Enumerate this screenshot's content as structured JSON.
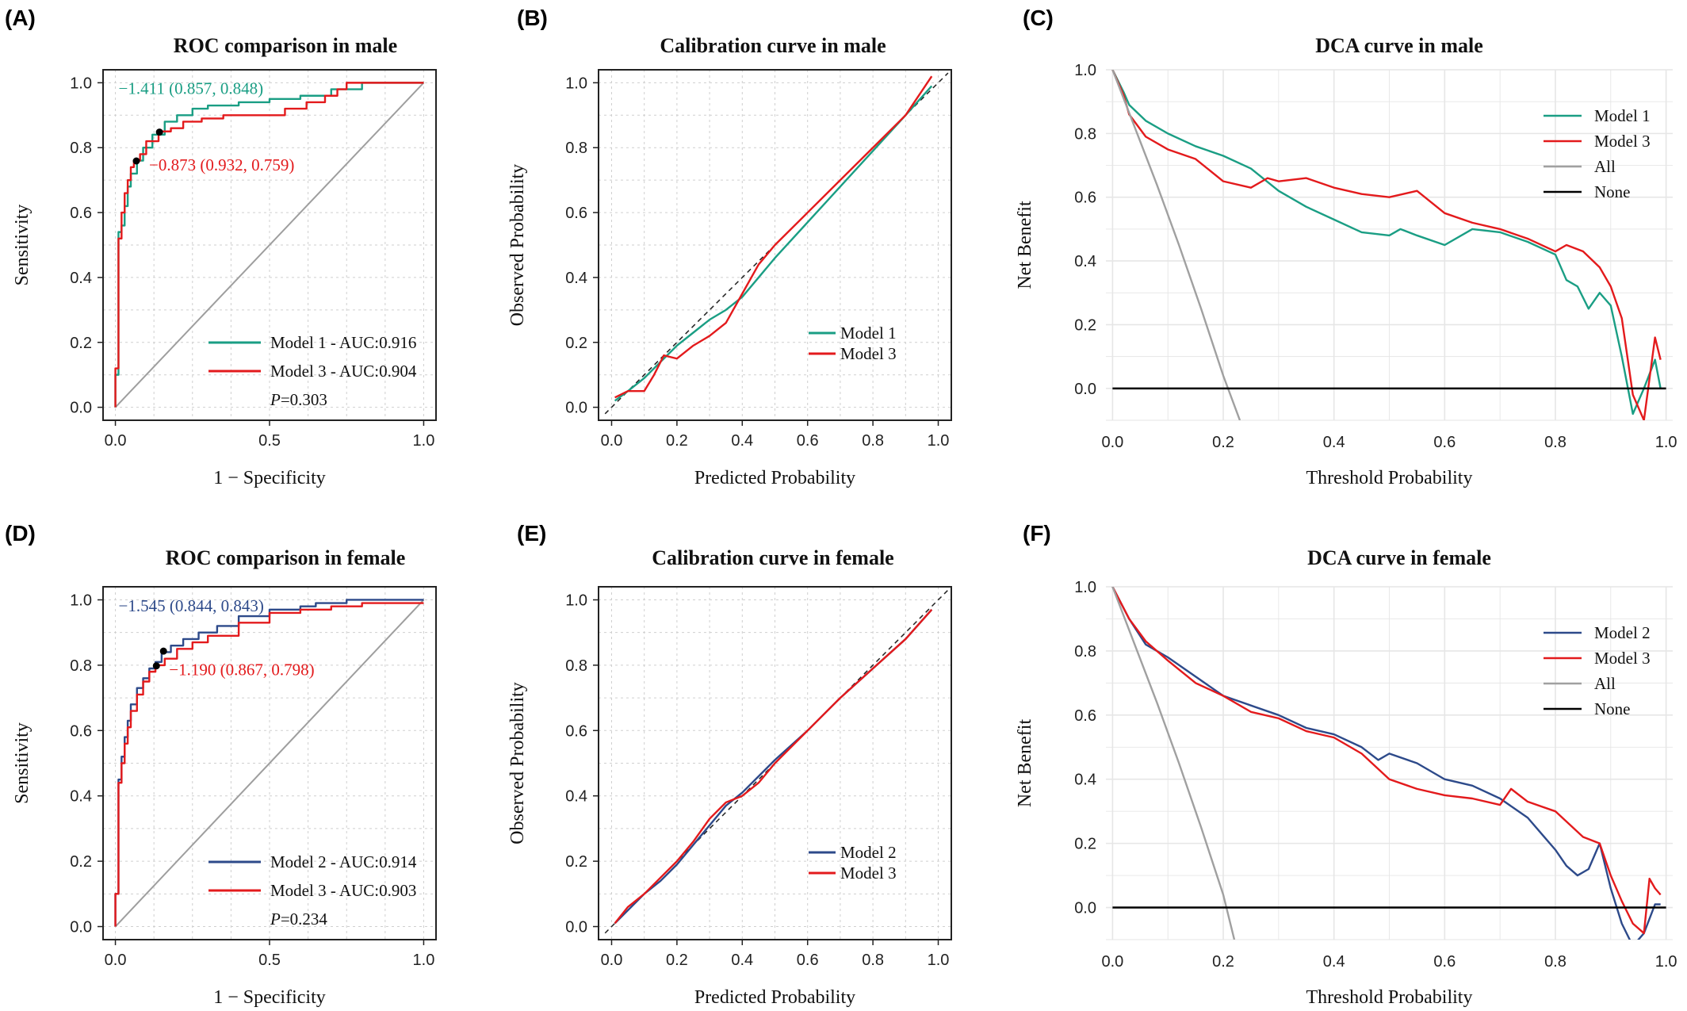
{
  "chart_data": [
    {
      "panel": "(A)",
      "type": "line",
      "kind": "roc",
      "title": "ROC comparison in male",
      "xlabel": "1 − Specificity",
      "ylabel": "Sensitivity",
      "xlim": [
        0,
        1
      ],
      "ylim": [
        0,
        1
      ],
      "xticks": [
        "0.0",
        "0.5",
        "1.0"
      ],
      "yticks": [
        "0.0",
        "0.2",
        "0.4",
        "0.6",
        "0.8",
        "1.0"
      ],
      "grid": true,
      "legend_position": "bottom-right",
      "p_label": "P",
      "p_value": "=0.303",
      "reference_line": true,
      "series": [
        {
          "name": "Model 1 - AUC:0.916",
          "color": "#1a9e84",
          "x": [
            0,
            0,
            0.01,
            0.01,
            0.02,
            0.03,
            0.04,
            0.05,
            0.07,
            0.09,
            0.12,
            0.16,
            0.2,
            0.25,
            0.3,
            0.4,
            0.5,
            0.6,
            0.7,
            0.8,
            0.9,
            1.0
          ],
          "y": [
            0,
            0.1,
            0.4,
            0.54,
            0.56,
            0.62,
            0.68,
            0.72,
            0.76,
            0.8,
            0.84,
            0.88,
            0.9,
            0.92,
            0.93,
            0.94,
            0.95,
            0.96,
            0.98,
            1.0,
            1.0,
            1.0
          ]
        },
        {
          "name": "Model 3 - AUC:0.904",
          "color": "#e31a1c",
          "x": [
            0,
            0,
            0.01,
            0.01,
            0.02,
            0.03,
            0.04,
            0.05,
            0.06,
            0.08,
            0.1,
            0.14,
            0.18,
            0.22,
            0.28,
            0.35,
            0.45,
            0.55,
            0.62,
            0.68,
            0.72,
            0.75,
            0.8,
            0.9,
            1.0
          ],
          "y": [
            0,
            0.12,
            0.42,
            0.52,
            0.6,
            0.66,
            0.7,
            0.74,
            0.76,
            0.78,
            0.82,
            0.85,
            0.86,
            0.88,
            0.89,
            0.9,
            0.9,
            0.92,
            0.94,
            0.96,
            0.98,
            1.0,
            1.0,
            1.0,
            1.0
          ]
        }
      ],
      "annotations": [
        {
          "text": "−1.411 (0.857, 0.848)",
          "x": 0.143,
          "y": 0.848,
          "color": "#1a9e84"
        },
        {
          "text": "−0.873 (0.932, 0.759)",
          "x": 0.068,
          "y": 0.759,
          "color": "#e31a1c"
        }
      ]
    },
    {
      "panel": "(B)",
      "type": "line",
      "kind": "calibration",
      "title": "Calibration curve in male",
      "xlabel": "Predicted Probability",
      "ylabel": "Observed Probability",
      "xlim": [
        0,
        1
      ],
      "ylim": [
        0,
        1
      ],
      "xticks": [
        "0.0",
        "0.2",
        "0.4",
        "0.6",
        "0.8",
        "1.0"
      ],
      "yticks": [
        "0.0",
        "0.2",
        "0.4",
        "0.6",
        "0.8",
        "1.0"
      ],
      "grid": true,
      "legend_position": "bottom-right",
      "reference_line": true,
      "series": [
        {
          "name": "Model 1",
          "color": "#1a9e84",
          "x": [
            0.01,
            0.05,
            0.1,
            0.15,
            0.2,
            0.25,
            0.3,
            0.35,
            0.4,
            0.45,
            0.5,
            0.6,
            0.7,
            0.8,
            0.9,
            0.98
          ],
          "y": [
            0.02,
            0.05,
            0.09,
            0.14,
            0.19,
            0.23,
            0.27,
            0.3,
            0.34,
            0.4,
            0.46,
            0.57,
            0.68,
            0.79,
            0.9,
            0.99
          ]
        },
        {
          "name": "Model 3",
          "color": "#e31a1c",
          "x": [
            0.01,
            0.05,
            0.1,
            0.13,
            0.16,
            0.2,
            0.25,
            0.3,
            0.35,
            0.4,
            0.45,
            0.5,
            0.6,
            0.7,
            0.8,
            0.9,
            0.98
          ],
          "y": [
            0.03,
            0.05,
            0.05,
            0.1,
            0.16,
            0.15,
            0.19,
            0.22,
            0.26,
            0.35,
            0.44,
            0.5,
            0.6,
            0.7,
            0.8,
            0.9,
            1.02
          ]
        }
      ]
    },
    {
      "panel": "(C)",
      "type": "line",
      "kind": "dca",
      "title": "DCA curve in male",
      "xlabel": "Threshold Probability",
      "ylabel": "Net Benefit",
      "xlim": [
        0,
        1
      ],
      "ylim": [
        -0.1,
        1
      ],
      "xticks": [
        "0.0",
        "0.2",
        "0.4",
        "0.6",
        "0.8",
        "1.0"
      ],
      "yticks": [
        "0.0",
        "0.2",
        "0.4",
        "0.6",
        "0.8",
        "1.0"
      ],
      "grid": true,
      "legend_position": "top-right",
      "series": [
        {
          "name": "Model 1",
          "color": "#1a9e84",
          "x": [
            0,
            0.02,
            0.03,
            0.06,
            0.1,
            0.15,
            0.2,
            0.25,
            0.3,
            0.35,
            0.4,
            0.45,
            0.5,
            0.52,
            0.55,
            0.6,
            0.65,
            0.7,
            0.75,
            0.8,
            0.82,
            0.84,
            0.86,
            0.88,
            0.9,
            0.92,
            0.94,
            0.96,
            0.98,
            0.99
          ],
          "y": [
            1.0,
            0.93,
            0.89,
            0.84,
            0.8,
            0.76,
            0.73,
            0.69,
            0.62,
            0.57,
            0.53,
            0.49,
            0.48,
            0.5,
            0.48,
            0.45,
            0.5,
            0.49,
            0.46,
            0.42,
            0.34,
            0.32,
            0.25,
            0.3,
            0.26,
            0.1,
            -0.08,
            0.0,
            0.09,
            0.0
          ]
        },
        {
          "name": "Model 3",
          "color": "#e31a1c",
          "x": [
            0,
            0.02,
            0.03,
            0.06,
            0.1,
            0.15,
            0.2,
            0.25,
            0.28,
            0.3,
            0.35,
            0.4,
            0.45,
            0.5,
            0.55,
            0.6,
            0.65,
            0.7,
            0.75,
            0.8,
            0.82,
            0.85,
            0.88,
            0.9,
            0.92,
            0.94,
            0.96,
            0.98,
            0.99
          ],
          "y": [
            1.0,
            0.92,
            0.86,
            0.79,
            0.75,
            0.72,
            0.65,
            0.63,
            0.66,
            0.65,
            0.66,
            0.63,
            0.61,
            0.6,
            0.62,
            0.55,
            0.52,
            0.5,
            0.47,
            0.43,
            0.45,
            0.43,
            0.38,
            0.32,
            0.22,
            -0.02,
            -0.1,
            0.16,
            0.09
          ]
        },
        {
          "name": "All",
          "color": "#a0a0a0",
          "x": [
            0,
            0.04,
            0.08,
            0.12,
            0.16,
            0.2,
            0.215,
            0.23
          ],
          "y": [
            1.0,
            0.82,
            0.64,
            0.45,
            0.25,
            0.04,
            -0.03,
            -0.1
          ]
        },
        {
          "name": "None",
          "color": "#000000",
          "x": [
            0,
            1
          ],
          "y": [
            0,
            0
          ]
        }
      ]
    },
    {
      "panel": "(D)",
      "type": "line",
      "kind": "roc",
      "title": "ROC comparison in female",
      "xlabel": "1 − Specificity",
      "ylabel": "Sensitivity",
      "xlim": [
        0,
        1
      ],
      "ylim": [
        0,
        1
      ],
      "xticks": [
        "0.0",
        "0.5",
        "1.0"
      ],
      "yticks": [
        "0.0",
        "0.2",
        "0.4",
        "0.6",
        "0.8",
        "1.0"
      ],
      "grid": true,
      "legend_position": "bottom-right",
      "p_label": "P",
      "p_value": "=0.234",
      "reference_line": true,
      "series": [
        {
          "name": "Model 2 - AUC:0.914",
          "color": "#2d4a8a",
          "x": [
            0,
            0,
            0.01,
            0.01,
            0.02,
            0.03,
            0.04,
            0.05,
            0.07,
            0.09,
            0.11,
            0.13,
            0.15,
            0.18,
            0.22,
            0.27,
            0.33,
            0.4,
            0.5,
            0.6,
            0.65,
            0.75,
            0.9,
            1.0
          ],
          "y": [
            0,
            0.1,
            0.3,
            0.45,
            0.52,
            0.58,
            0.63,
            0.68,
            0.73,
            0.76,
            0.79,
            0.81,
            0.84,
            0.86,
            0.88,
            0.9,
            0.92,
            0.95,
            0.97,
            0.98,
            0.99,
            1.0,
            1.0,
            1.0
          ]
        },
        {
          "name": "Model 3 - AUC:0.903",
          "color": "#e31a1c",
          "x": [
            0,
            0,
            0.01,
            0.01,
            0.02,
            0.03,
            0.04,
            0.05,
            0.07,
            0.09,
            0.11,
            0.13,
            0.16,
            0.2,
            0.25,
            0.3,
            0.4,
            0.5,
            0.6,
            0.7,
            0.8,
            0.9,
            1.0
          ],
          "y": [
            0,
            0.1,
            0.3,
            0.44,
            0.5,
            0.56,
            0.61,
            0.66,
            0.71,
            0.75,
            0.78,
            0.8,
            0.82,
            0.85,
            0.87,
            0.89,
            0.93,
            0.96,
            0.97,
            0.98,
            0.99,
            0.99,
            0.99
          ]
        }
      ],
      "annotations": [
        {
          "text": "−1.545 (0.844, 0.843)",
          "x": 0.156,
          "y": 0.843,
          "color": "#2d4a8a"
        },
        {
          "text": "−1.190 (0.867, 0.798)",
          "x": 0.133,
          "y": 0.798,
          "color": "#e31a1c"
        }
      ]
    },
    {
      "panel": "(E)",
      "type": "line",
      "kind": "calibration",
      "title": "Calibration curve in female",
      "xlabel": "Predicted Probability",
      "ylabel": "Observed Probability",
      "xlim": [
        0,
        1
      ],
      "ylim": [
        0,
        1
      ],
      "xticks": [
        "0.0",
        "0.2",
        "0.4",
        "0.6",
        "0.8",
        "1.0"
      ],
      "yticks": [
        "0.0",
        "0.2",
        "0.4",
        "0.6",
        "0.8",
        "1.0"
      ],
      "grid": true,
      "legend_position": "bottom-right",
      "reference_line": true,
      "series": [
        {
          "name": "Model 2",
          "color": "#2d4a8a",
          "x": [
            0.01,
            0.05,
            0.1,
            0.15,
            0.2,
            0.25,
            0.3,
            0.35,
            0.4,
            0.45,
            0.5,
            0.6,
            0.7,
            0.8,
            0.9,
            0.98
          ],
          "y": [
            0.01,
            0.05,
            0.1,
            0.14,
            0.19,
            0.25,
            0.31,
            0.37,
            0.41,
            0.46,
            0.51,
            0.6,
            0.7,
            0.79,
            0.88,
            0.97
          ]
        },
        {
          "name": "Model 3",
          "color": "#e31a1c",
          "x": [
            0.01,
            0.05,
            0.1,
            0.15,
            0.2,
            0.25,
            0.3,
            0.35,
            0.4,
            0.45,
            0.5,
            0.6,
            0.7,
            0.8,
            0.9,
            0.98
          ],
          "y": [
            0.01,
            0.06,
            0.1,
            0.15,
            0.2,
            0.26,
            0.33,
            0.38,
            0.4,
            0.44,
            0.5,
            0.6,
            0.7,
            0.79,
            0.88,
            0.97
          ]
        }
      ]
    },
    {
      "panel": "(F)",
      "type": "line",
      "kind": "dca",
      "title": "DCA curve in female",
      "xlabel": "Threshold Probability",
      "ylabel": "Net Benefit",
      "xlim": [
        0,
        1
      ],
      "ylim": [
        -0.1,
        1
      ],
      "xticks": [
        "0.0",
        "0.2",
        "0.4",
        "0.6",
        "0.8",
        "1.0"
      ],
      "yticks": [
        "0.0",
        "0.2",
        "0.4",
        "0.6",
        "0.8",
        "1.0"
      ],
      "grid": true,
      "legend_position": "top-right",
      "series": [
        {
          "name": "Model 2",
          "color": "#2d4a8a",
          "x": [
            0,
            0.03,
            0.06,
            0.1,
            0.15,
            0.2,
            0.25,
            0.3,
            0.35,
            0.4,
            0.45,
            0.48,
            0.5,
            0.55,
            0.6,
            0.65,
            0.7,
            0.75,
            0.78,
            0.8,
            0.82,
            0.84,
            0.86,
            0.88,
            0.9,
            0.92,
            0.94,
            0.96,
            0.98,
            0.99
          ],
          "y": [
            1.0,
            0.9,
            0.82,
            0.78,
            0.72,
            0.66,
            0.63,
            0.6,
            0.56,
            0.54,
            0.5,
            0.46,
            0.48,
            0.45,
            0.4,
            0.38,
            0.34,
            0.28,
            0.22,
            0.18,
            0.13,
            0.1,
            0.12,
            0.2,
            0.06,
            -0.05,
            -0.12,
            -0.08,
            0.01,
            0.01
          ]
        },
        {
          "name": "Model 3",
          "color": "#e31a1c",
          "x": [
            0,
            0.03,
            0.06,
            0.1,
            0.15,
            0.2,
            0.25,
            0.3,
            0.35,
            0.4,
            0.45,
            0.5,
            0.55,
            0.6,
            0.65,
            0.7,
            0.72,
            0.75,
            0.8,
            0.85,
            0.88,
            0.9,
            0.92,
            0.94,
            0.96,
            0.97,
            0.98,
            0.99
          ],
          "y": [
            1.0,
            0.9,
            0.83,
            0.77,
            0.7,
            0.66,
            0.61,
            0.59,
            0.55,
            0.53,
            0.48,
            0.4,
            0.37,
            0.35,
            0.34,
            0.32,
            0.37,
            0.33,
            0.3,
            0.22,
            0.2,
            0.1,
            0.02,
            -0.05,
            -0.08,
            0.09,
            0.06,
            0.04
          ]
        },
        {
          "name": "All",
          "color": "#a0a0a0",
          "x": [
            0,
            0.04,
            0.08,
            0.12,
            0.16,
            0.2,
            0.21,
            0.22
          ],
          "y": [
            1.0,
            0.82,
            0.64,
            0.45,
            0.25,
            0.04,
            -0.03,
            -0.1
          ]
        },
        {
          "name": "None",
          "color": "#000000",
          "x": [
            0,
            1
          ],
          "y": [
            0,
            0
          ]
        }
      ]
    }
  ]
}
